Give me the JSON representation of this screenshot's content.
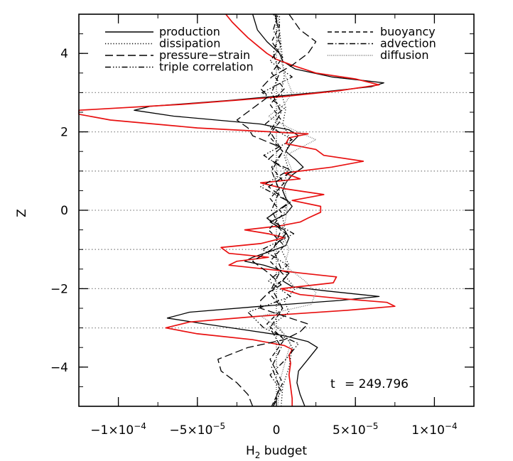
{
  "chart_data": {
    "type": "line",
    "xlabel": "H",
    "xlabel_sub": "2",
    "xlabel_rest": " budget",
    "ylabel": "Z",
    "xlim": [
      -0.000125,
      0.000125
    ],
    "ylim": [
      -5,
      5
    ],
    "grid": "dotted horizontal at z = -3, -2, -1, 0, 1, 2, 3",
    "grid_z": [
      -3,
      -2,
      -1,
      0,
      1,
      2,
      3
    ],
    "x_ticks": [
      {
        "value": -0.0001,
        "mant": "−1×10",
        "exp": "−4"
      },
      {
        "value": -5e-05,
        "mant": "−5×10",
        "exp": "−5"
      },
      {
        "value": 0,
        "mant": "0",
        "exp": ""
      },
      {
        "value": 5e-05,
        "mant": "5×10",
        "exp": "−5"
      },
      {
        "value": 0.0001,
        "mant": "1×10",
        "exp": "−4"
      }
    ],
    "y_ticks": [
      {
        "value": -4,
        "label": "−4"
      },
      {
        "value": -2,
        "label": "−2"
      },
      {
        "value": 0,
        "label": "0"
      },
      {
        "value": 2,
        "label": "2"
      },
      {
        "value": 4,
        "label": "4"
      }
    ],
    "annotation": {
      "label": "t",
      "value": "= 249.796"
    },
    "legend_left": [
      {
        "name": "production",
        "dash": "solid"
      },
      {
        "name": "dissipation",
        "dash": "dotted"
      },
      {
        "name": "pressure−strain",
        "dash": "longdash"
      },
      {
        "name": "triple correlation",
        "dash": "dashdotdotdot"
      }
    ],
    "legend_right": [
      {
        "name": "buoyancy",
        "dash": "dashed"
      },
      {
        "name": "advection",
        "dash": "dashdot"
      },
      {
        "name": "diffusion",
        "dash": "finedot"
      }
    ],
    "series": [
      {
        "name": "production",
        "color": "#000000",
        "dash": "solid",
        "z": [
          -5,
          -4.7,
          -4.4,
          -4.1,
          -3.8,
          -3.5,
          -3.35,
          -3.2,
          -3.05,
          -2.9,
          -2.75,
          -2.6,
          -2.45,
          -2.3,
          -2.2,
          -2.05,
          -1.95,
          -1.8,
          -1.6,
          -1.4,
          -1.3,
          -1.2,
          -1.05,
          -0.9,
          -0.7,
          -0.5,
          -0.3,
          -0.1,
          0.1,
          0.3,
          0.5,
          0.7,
          0.9,
          1.1,
          1.3,
          1.5,
          1.7,
          1.9,
          2.05,
          2.2,
          2.4,
          2.55,
          2.65,
          2.8,
          3.0,
          3.15,
          3.25,
          3.4,
          3.6,
          3.8,
          4.0,
          4.3,
          4.6,
          5
        ],
        "x": [
          1.8e-05,
          1.5e-05,
          1.3e-05,
          1.4e-05,
          2e-05,
          2.6e-05,
          2e-05,
          5e-06,
          -2e-05,
          -4.5e-05,
          -6.9e-05,
          -5.5e-05,
          -1e-05,
          4e-05,
          6.5e-05,
          3e-05,
          1e-05,
          4e-06,
          8e-06,
          -8e-06,
          -2e-05,
          -1.5e-05,
          -4e-06,
          6e-06,
          8e-06,
          5e-06,
          -4e-06,
          6e-06,
          1e-05,
          6e-06,
          4e-06,
          6e-06,
          1e-05,
          1.7e-05,
          1.2e-05,
          6e-06,
          9e-06,
          1.4e-05,
          8e-06,
          -1e-05,
          -6.5e-05,
          -9e-05,
          -8e-05,
          -3e-05,
          2.5e-05,
          6e-05,
          6.8e-05,
          3.5e-05,
          1.2e-05,
          4e-06,
          2e-06,
          -6e-06,
          -1.2e-05,
          -1.5e-05
        ]
      },
      {
        "name": "red curve",
        "color": "#e81010",
        "dash": "solid",
        "z": [
          -5,
          -4.8,
          -4.5,
          -4.2,
          -3.9,
          -3.7,
          -3.55,
          -3.45,
          -3.3,
          -3.15,
          -3.0,
          -2.85,
          -2.7,
          -2.55,
          -2.45,
          -2.35,
          -2.25,
          -2.15,
          -2.0,
          -1.85,
          -1.7,
          -1.6,
          -1.55,
          -1.4,
          -1.3,
          -1.2,
          -1.1,
          -0.95,
          -0.85,
          -0.7,
          -0.6,
          -0.5,
          -0.4,
          -0.3,
          -0.2,
          -0.05,
          0.1,
          0.25,
          0.4,
          0.55,
          0.7,
          0.8,
          0.95,
          1.1,
          1.25,
          1.4,
          1.55,
          1.7,
          1.85,
          1.95,
          2.1,
          2.3,
          2.45,
          2.55,
          2.7,
          2.9,
          3.05,
          3.2,
          3.35,
          3.5,
          3.7,
          3.85,
          4.0,
          4.2,
          4.4,
          4.6,
          4.8,
          5
        ],
        "x": [
          1e-05,
          1e-05,
          9e-06,
          8e-06,
          9e-06,
          8e-06,
          1e-05,
          5e-06,
          -1.5e-05,
          -5e-05,
          -7e-05,
          -5.5e-05,
          -1e-05,
          4.5e-05,
          7.5e-05,
          7e-05,
          4e-05,
          1.5e-05,
          3e-06,
          3.6e-05,
          3.8e-05,
          1.5e-05,
          5e-06,
          -3e-05,
          -2.5e-05,
          -5e-06,
          -3e-05,
          -3.5e-05,
          -1e-05,
          5e-06,
          -5e-06,
          -2e-05,
          2e-06,
          1.5e-05,
          2e-05,
          2.8e-05,
          2.8e-05,
          1e-05,
          3e-05,
          5e-06,
          -1e-05,
          1.5e-05,
          5e-06,
          3.5e-05,
          5.5e-05,
          3e-05,
          2.5e-05,
          6e-06,
          8e-06,
          2e-05,
          -5e-05,
          -0.000105,
          -0.000125,
          -0.000125,
          -6e-05,
          5e-06,
          4e-05,
          6.5e-05,
          5e-05,
          2.5e-05,
          1e-05,
          0.0,
          -6e-06,
          -1.2e-05,
          -1.8e-05,
          -2.3e-05,
          -2.8e-05,
          -3.2e-05
        ]
      },
      {
        "name": "pressure−strain",
        "color": "#000000",
        "dash": "longdash",
        "z": [
          -5,
          -4.7,
          -4.4,
          -4.1,
          -3.8,
          -3.5,
          -3.3,
          -3.1,
          -2.9,
          -2.7,
          -2.5,
          -2.3,
          -2.1,
          -1.9,
          -1.6,
          -1.3,
          -1.0,
          -0.6,
          -0.2,
          0.2,
          0.6,
          1.0,
          1.3,
          1.6,
          1.9,
          2.1,
          2.3,
          2.6,
          2.9,
          3.1,
          3.4,
          3.7,
          4.0,
          4.3,
          4.6,
          5
        ],
        "x": [
          -1.5e-05,
          -1.8e-05,
          -2.5e-05,
          -3.5e-05,
          -3.7e-05,
          -1.8e-05,
          5e-06,
          1.5e-05,
          2e-05,
          5e-06,
          -1e-05,
          -1e-05,
          -5e-06,
          3e-06,
          -5e-06,
          -1.5e-05,
          -3e-06,
          6e-06,
          -6e-06,
          8e-06,
          -5e-06,
          1e-05,
          -5e-06,
          3e-06,
          -1.5e-05,
          -1.8e-05,
          -2.5e-05,
          -1.5e-05,
          -5e-06,
          -1e-05,
          -3e-06,
          1e-05,
          2e-05,
          2.5e-05,
          1.5e-05,
          8e-06
        ]
      },
      {
        "name": "dissipation",
        "color": "#000000",
        "dash": "dotted",
        "z": [
          -5,
          -4.5,
          -4.0,
          -3.5,
          -3.2,
          -2.9,
          -2.6,
          -2.3,
          -2.0,
          -1.7,
          -1.4,
          -1.0,
          -0.6,
          -0.2,
          0.2,
          0.6,
          1.0,
          1.4,
          1.8,
          2.2,
          2.6,
          3.0,
          3.4,
          3.8,
          4.2,
          4.6,
          5
        ],
        "x": [
          3e-06,
          4e-06,
          8e-06,
          1e-05,
          6e-06,
          -2e-06,
          8e-06,
          5e-06,
          1.2e-05,
          6e-06,
          8e-06,
          3e-06,
          6e-06,
          4e-06,
          7e-06,
          3e-06,
          8e-06,
          5e-06,
          9e-06,
          4e-06,
          6e-06,
          3e-06,
          5e-06,
          4e-06,
          3e-06,
          2e-06,
          2e-06
        ]
      },
      {
        "name": "buoyancy",
        "color": "#000000",
        "dash": "dashed",
        "z": [
          -5,
          -4.4,
          -3.8,
          -3.3,
          -2.9,
          -2.5,
          -2.1,
          -1.7,
          -1.3,
          -0.9,
          -0.5,
          -0.1,
          0.3,
          0.7,
          1.1,
          1.5,
          1.9,
          2.3,
          2.7,
          3.1,
          3.5,
          3.9,
          4.3,
          4.7,
          5
        ],
        "x": [
          -3e-06,
          4e-06,
          -4e-06,
          5e-06,
          -6e-06,
          4e-06,
          -5e-06,
          6e-06,
          -4e-06,
          5e-06,
          -5e-06,
          4e-06,
          -4e-06,
          5e-06,
          -3e-06,
          4e-06,
          -5e-06,
          3e-06,
          -4e-06,
          5e-06,
          -3e-06,
          4e-06,
          -3e-06,
          2e-06,
          -2e-06
        ]
      },
      {
        "name": "advection",
        "color": "#000000",
        "dash": "dashdot",
        "z": [
          -5,
          -4.5,
          -4.0,
          -3.5,
          -3.0,
          -2.5,
          -2.0,
          -1.5,
          -1.0,
          -0.5,
          0.0,
          0.5,
          1.0,
          1.5,
          2.0,
          2.5,
          3.0,
          3.5,
          4.0,
          4.5,
          5
        ],
        "x": [
          -2e-06,
          2e-06,
          -3e-06,
          3e-06,
          -4e-06,
          4e-06,
          -3e-06,
          3e-06,
          -2e-06,
          3e-06,
          -3e-06,
          2e-06,
          -3e-06,
          4e-06,
          -4e-06,
          3e-06,
          -3e-06,
          2e-06,
          -2e-06,
          2e-06,
          -1e-06
        ]
      },
      {
        "name": "diffusion",
        "color": "#777777",
        "dash": "finedot",
        "z": [
          -5,
          -4.4,
          -3.8,
          -3.4,
          -3.0,
          -2.7,
          -2.4,
          -2.1,
          -1.8,
          -1.4,
          -1.0,
          -0.6,
          -0.2,
          0.2,
          0.6,
          1.0,
          1.4,
          1.8,
          2.1,
          2.4,
          2.7,
          3.0,
          3.4,
          3.8,
          4.4,
          5
        ],
        "x": [
          1e-06,
          2e-06,
          6e-06,
          9e-06,
          2e-06,
          -1e-05,
          2.2e-05,
          2.5e-05,
          1.8e-05,
          5e-06,
          8e-06,
          4e-06,
          6e-06,
          7e-06,
          5e-06,
          1e-05,
          6e-06,
          2.5e-05,
          8e-06,
          -5e-06,
          5e-06,
          1e-05,
          6e-06,
          3e-06,
          2e-06,
          1e-06
        ]
      },
      {
        "name": "triple correlation",
        "color": "#000000",
        "dash": "dashdotdotdot",
        "z": [
          -5,
          -4.6,
          -4.2,
          -3.8,
          -3.4,
          -3.0,
          -2.6,
          -2.2,
          -1.8,
          -1.4,
          -1.0,
          -0.6,
          -0.2,
          0.2,
          0.6,
          1.0,
          1.4,
          1.8,
          2.2,
          2.6,
          3.0,
          3.4,
          3.8,
          4.2,
          4.6,
          5
        ],
        "x": [
          -2e-06,
          3e-06,
          -4e-06,
          6e-06,
          1.4e-05,
          -8e-06,
          -1.8e-05,
          9e-06,
          -5e-06,
          7e-06,
          -9e-06,
          1.1e-05,
          -6e-06,
          9e-06,
          -1e-05,
          7e-06,
          -8e-06,
          1e-05,
          -7e-06,
          5e-06,
          -9e-06,
          1e-05,
          -4e-06,
          3e-06,
          -2e-06,
          1e-06
        ]
      }
    ]
  }
}
